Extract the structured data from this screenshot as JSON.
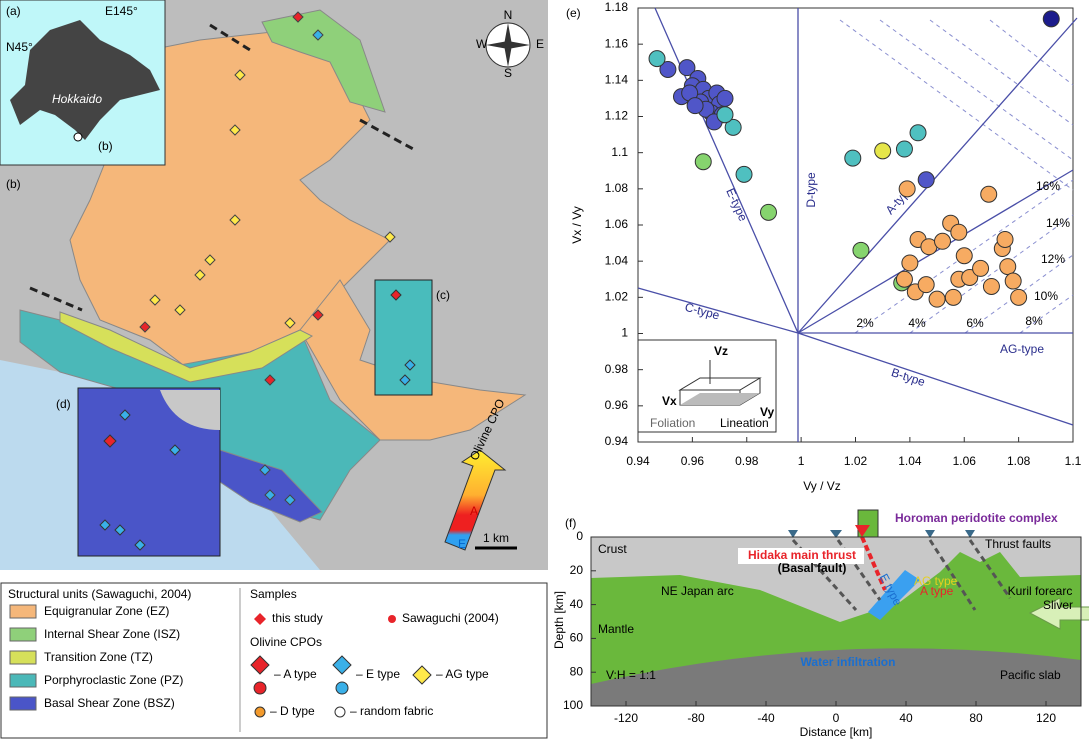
{
  "map": {
    "panel_labels": [
      "(a)",
      "(b)",
      "(c)",
      "(d)"
    ],
    "inset": {
      "lon": "E145°",
      "lat": "N45°",
      "island": "Hokkaido",
      "site": "(b)"
    },
    "compass": [
      "N",
      "E",
      "S",
      "W"
    ],
    "scale_bar": "1 km",
    "cpo_arrow": {
      "title": "Olivine CPO",
      "ends": [
        "A",
        "E"
      ]
    }
  },
  "legend": {
    "units_title": "Structural units (Sawaguchi, 2004)",
    "units": [
      "Equigranular Zone (EZ)",
      "Internal Shear Zone (ISZ)",
      "Transition Zone (TZ)",
      "Porphyroclastic Zone (PZ)",
      "Basal Shear Zone (BSZ)"
    ],
    "samples_title": "Samples",
    "samples": [
      "this study",
      "Sawaguchi (2004)"
    ],
    "cpo_title": "Olivine CPOs",
    "cpo": [
      "– A type",
      "– E type",
      "– AG type",
      "– D type",
      "– random fabric"
    ]
  },
  "chart_data": [
    {
      "type": "scatter",
      "panel": "(e)",
      "xlabel": "Vy / Vz",
      "ylabel": "Vx / Vy",
      "xlim": [
        0.94,
        1.1
      ],
      "ylim": [
        0.94,
        1.18
      ],
      "xticks": [
        0.94,
        0.96,
        0.98,
        1,
        1.02,
        1.04,
        1.06,
        1.08,
        1.1
      ],
      "yticks": [
        0.94,
        0.96,
        0.98,
        1,
        1.02,
        1.04,
        1.06,
        1.08,
        1.1,
        1.12,
        1.14,
        1.16,
        1.18
      ],
      "fabric_labels": [
        "E-type",
        "D-type",
        "A-type",
        "C-type",
        "B-type",
        "AG-type"
      ],
      "percent_labels": [
        "2%",
        "4%",
        "6%",
        "8%",
        "10%",
        "12%",
        "14%",
        "16%"
      ],
      "inset_labels": [
        "Vz",
        "Vx",
        "Vy",
        "Foliation",
        "Lineation"
      ],
      "series": [
        {
          "color": "#5056c8",
          "x": [
            0.951,
            0.958,
            0.962,
            0.96,
            0.964,
            0.966,
            0.969,
            0.963,
            0.97,
            0.967,
            0.971,
            0.965,
            0.972,
            0.956,
            0.959,
            0.968,
            0.961,
            1.046
          ],
          "values": [
            1.146,
            1.147,
            1.141,
            1.137,
            1.135,
            1.13,
            1.133,
            1.128,
            1.127,
            1.122,
            1.121,
            1.124,
            1.13,
            1.131,
            1.133,
            1.117,
            1.126,
            1.085
          ]
        },
        {
          "color": "#4fc0c0",
          "x": [
            0.947,
            0.975,
            0.979,
            1.019,
            1.038,
            1.043,
            0.972
          ],
          "values": [
            1.152,
            1.114,
            1.088,
            1.097,
            1.102,
            1.111,
            1.121
          ]
        },
        {
          "color": "#86d46e",
          "x": [
            0.964,
            0.988,
            1.022,
            1.037
          ],
          "values": [
            1.095,
            1.067,
            1.046,
            1.028
          ]
        },
        {
          "color": "#e6e64a",
          "x": [
            1.03
          ],
          "values": [
            1.101
          ]
        },
        {
          "color": "#1c1c8c",
          "x": [
            1.092
          ],
          "values": [
            1.174
          ]
        },
        {
          "color": "#f7ab62",
          "x": [
            1.039,
            1.04,
            1.043,
            1.047,
            1.052,
            1.055,
            1.058,
            1.069,
            1.042,
            1.046,
            1.05,
            1.056,
            1.058,
            1.06,
            1.062,
            1.066,
            1.07,
            1.074,
            1.075,
            1.076,
            1.078,
            1.08,
            1.038
          ],
          "values": [
            1.08,
            1.039,
            1.052,
            1.048,
            1.051,
            1.061,
            1.056,
            1.077,
            1.023,
            1.027,
            1.019,
            1.02,
            1.03,
            1.043,
            1.031,
            1.036,
            1.026,
            1.047,
            1.052,
            1.037,
            1.029,
            1.02,
            1.03
          ]
        }
      ]
    },
    {
      "type": "section",
      "panel": "(f)",
      "xlabel": "Distance [km]",
      "ylabel": "Depth [km]",
      "xlim": [
        -140,
        140
      ],
      "ylim": [
        0,
        100
      ],
      "y_inverted": true,
      "xticks": [
        -120,
        -80,
        -40,
        0,
        40,
        80,
        120
      ],
      "yticks": [
        0,
        20,
        40,
        60,
        80,
        100
      ],
      "labels": {
        "crust": "Crust",
        "mantle": "Mantle",
        "arc": "NE Japan arc",
        "sliver": [
          "Kuril forearc",
          "Sliver"
        ],
        "slab": "Pacific slab",
        "ratio": "V:H = 1:1",
        "thrust": "Hidaka main thrust",
        "fault": "(Basal fault)",
        "etype": "E type",
        "agtype": "AG type",
        "atype": "A type",
        "water": "Water infiltration",
        "faults": "Thrust faults",
        "horoman": "Horoman peridotite complex"
      }
    }
  ]
}
